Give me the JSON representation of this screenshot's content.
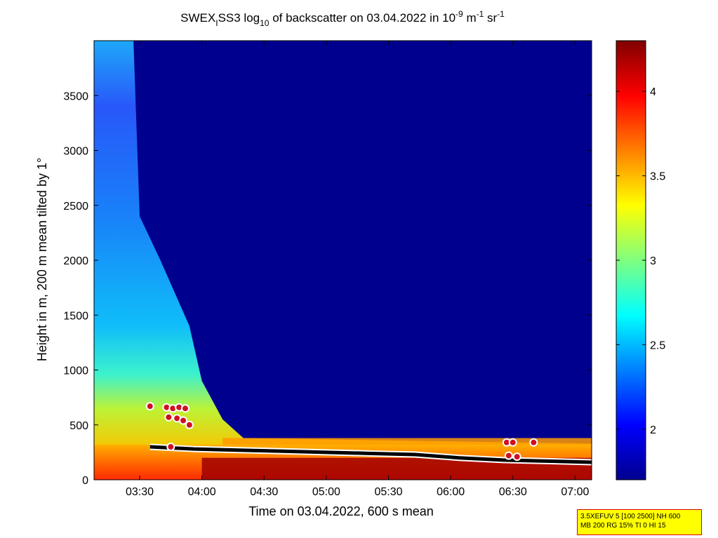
{
  "chart_data": {
    "type": "heatmap",
    "title": {
      "prefix": "SWEX",
      "sub_i": "I",
      "mid": "SS3 log",
      "sub_10": "10",
      "rest": " of backscatter on 03.04.2022 in 10",
      "sup_exp": "-9",
      "unit_m": " m",
      "sup_m": "-1",
      "unit_sr": " sr",
      "sup_sr": "-1"
    },
    "xlabel": "Time on 03.04.2022, 600 s mean",
    "ylabel": "Height in m, 200 m mean tilted by 1°",
    "x_ticks": [
      "03:30",
      "04:00",
      "04:30",
      "05:00",
      "05:30",
      "06:00",
      "06:30",
      "07:00"
    ],
    "x_range": [
      "03:08",
      "07:08"
    ],
    "y_ticks": [
      0,
      500,
      1000,
      1500,
      2000,
      2500,
      3000,
      3500
    ],
    "ylim": [
      0,
      4000
    ],
    "colorbar": {
      "ticks": [
        "2",
        "2.5",
        "3",
        "3.5",
        "4"
      ],
      "range": [
        1.7,
        4.3
      ],
      "colormap": "jet"
    },
    "features": {
      "mixing_layer_top_m": [
        1050,
        900,
        600,
        400,
        360,
        350,
        350,
        330,
        300,
        260,
        280,
        290
      ],
      "surface_layer_top_m": [
        300,
        280,
        270,
        260,
        250,
        240,
        230,
        200,
        180,
        170,
        160
      ],
      "background_log10": 1.75
    }
  },
  "info_box": {
    "line1": "3.5XEFUV 5 [100 2500] NH 600",
    "line2": "MB 200 RG 15% TI 0 HI 15"
  },
  "colors": {
    "background": "#ffffff",
    "info_box_fill": "#ffff00",
    "info_box_border": "#e00000",
    "marker_dots": "#d01020",
    "marker_dots_edge": "#ffffff",
    "layer_line": "#000000"
  }
}
